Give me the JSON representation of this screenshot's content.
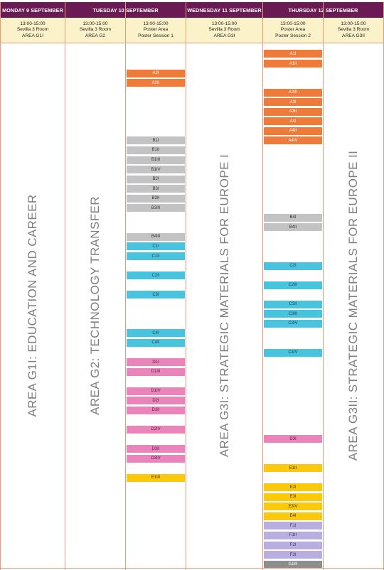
{
  "days": [
    {
      "label": "MONDAY 9 SEPTEMBER"
    },
    {
      "label": "TUESDAY 10 SEPTEMBER"
    },
    {
      "label": "WEDNESDAY 11 SEPTEMBER"
    },
    {
      "label": "THURSDAY 12 SEPTEMBER"
    }
  ],
  "columns": [
    {
      "time": "13:00-15:00",
      "room": "Sevilla 3 Room",
      "area": "AREA G1I",
      "title": "AREA G1I: EDUCATION AND CAREER"
    },
    {
      "time": "13:00-15:00",
      "room": "Sevilla 3 Room",
      "area": "AREA G2",
      "title": "AREA G2: TECHNOLOGY TRANSFER"
    },
    {
      "time": "13:00-15:00",
      "room": "Poster Area",
      "area": "Poster Session 1"
    },
    {
      "time": "13:00-15:00",
      "room": "Sevilla 3 Room",
      "area": "AREA G3I",
      "title": "AREA G3I: STRATEGIC MATERIALS FOR EUROPE I"
    },
    {
      "time": "13:00-15:00",
      "room": "Poster Area",
      "area": "Poster Session 2"
    },
    {
      "time": "13:00-15:00",
      "room": "Sevilla 3 Room",
      "area": "AREA G3II",
      "title": "AREA G3II: STRATEGIC MATERIALS FOR EUROPE II"
    }
  ],
  "colors": {
    "orange": "#ee7b3a",
    "gray": "#c3c3c3",
    "cyan": "#48c4de",
    "pink": "#ec84bc",
    "yellow": "#f9c90a",
    "violet": "#b9aee0",
    "dark": "#8e8e8e",
    "header": "#6a1b54",
    "subheader": "#fbf2c9"
  },
  "session1": [
    {
      "label": "A2I",
      "row": 1,
      "color": "orange"
    },
    {
      "label": "A2II",
      "row": 2,
      "color": "orange"
    },
    {
      "label": "B1I",
      "row": 8,
      "color": "gray"
    },
    {
      "label": "B1II",
      "row": 9,
      "color": "gray"
    },
    {
      "label": "B1III",
      "row": 10,
      "color": "gray"
    },
    {
      "label": "B1IV",
      "row": 11,
      "color": "gray"
    },
    {
      "label": "B2I",
      "row": 12,
      "color": "gray"
    },
    {
      "label": "B3I",
      "row": 13,
      "color": "gray"
    },
    {
      "label": "B3II",
      "row": 14,
      "color": "gray"
    },
    {
      "label": "B3III",
      "row": 15,
      "color": "gray"
    },
    {
      "label": "B4III",
      "row": 18,
      "color": "gray"
    },
    {
      "label": "C1I",
      "row": 19,
      "color": "cyan"
    },
    {
      "label": "C1II",
      "row": 20,
      "color": "cyan"
    },
    {
      "label": "C2II",
      "row": 22,
      "color": "cyan"
    },
    {
      "label": "C3I",
      "row": 24,
      "color": "cyan"
    },
    {
      "label": "C4I",
      "row": 28,
      "color": "cyan"
    },
    {
      "label": "C4II",
      "row": 29,
      "color": "cyan"
    },
    {
      "label": "D1I",
      "row": 31,
      "color": "pink"
    },
    {
      "label": "D1III",
      "row": 32,
      "color": "pink"
    },
    {
      "label": "D1IV",
      "row": 34,
      "color": "pink"
    },
    {
      "label": "D2I",
      "row": 35,
      "color": "pink"
    },
    {
      "label": "D2II",
      "row": 36,
      "color": "pink"
    },
    {
      "label": "D2IV",
      "row": 38,
      "color": "pink"
    },
    {
      "label": "D3II",
      "row": 40,
      "color": "pink"
    },
    {
      "label": "D3IV",
      "row": 41,
      "color": "pink"
    },
    {
      "label": "E1III",
      "row": 43,
      "color": "yellow"
    }
  ],
  "session2": [
    {
      "label": "A1I",
      "row": -1,
      "color": "orange"
    },
    {
      "label": "A1II",
      "row": 0,
      "color": "orange"
    },
    {
      "label": "A2III",
      "row": 3,
      "color": "orange"
    },
    {
      "label": "A3I",
      "row": 4,
      "color": "orange"
    },
    {
      "label": "A3II",
      "row": 5,
      "color": "orange"
    },
    {
      "label": "A4I",
      "row": 6,
      "color": "orange"
    },
    {
      "label": "A4II",
      "row": 7,
      "color": "orange"
    },
    {
      "label": "A4IV",
      "row": 8,
      "color": "orange"
    },
    {
      "label": "B4I",
      "row": 16,
      "color": "gray"
    },
    {
      "label": "B4II",
      "row": 17,
      "color": "gray"
    },
    {
      "label": "C2I",
      "row": 21,
      "color": "cyan"
    },
    {
      "label": "C2III",
      "row": 23,
      "color": "cyan"
    },
    {
      "label": "C3II",
      "row": 25,
      "color": "cyan"
    },
    {
      "label": "C3III",
      "row": 26,
      "color": "cyan"
    },
    {
      "label": "C3IV",
      "row": 27,
      "color": "cyan"
    },
    {
      "label": "C4IV",
      "row": 30,
      "color": "cyan"
    },
    {
      "label": "D3I",
      "row": 39,
      "color": "pink"
    },
    {
      "label": "E1II",
      "row": 42,
      "color": "yellow"
    },
    {
      "label": "E2I",
      "row": 44,
      "color": "yellow"
    },
    {
      "label": "E3I",
      "row": 45,
      "color": "yellow"
    },
    {
      "label": "E3IV",
      "row": 46,
      "color": "yellow"
    },
    {
      "label": "E4I",
      "row": 47,
      "color": "yellow"
    },
    {
      "label": "F1I",
      "row": 48,
      "color": "violet"
    },
    {
      "label": "F1II",
      "row": 49,
      "color": "violet"
    },
    {
      "label": "F2I",
      "row": 50,
      "color": "violet"
    },
    {
      "label": "F3I",
      "row": 51,
      "color": "violet"
    },
    {
      "label": "G1III",
      "row": 52,
      "color": "dark"
    }
  ]
}
